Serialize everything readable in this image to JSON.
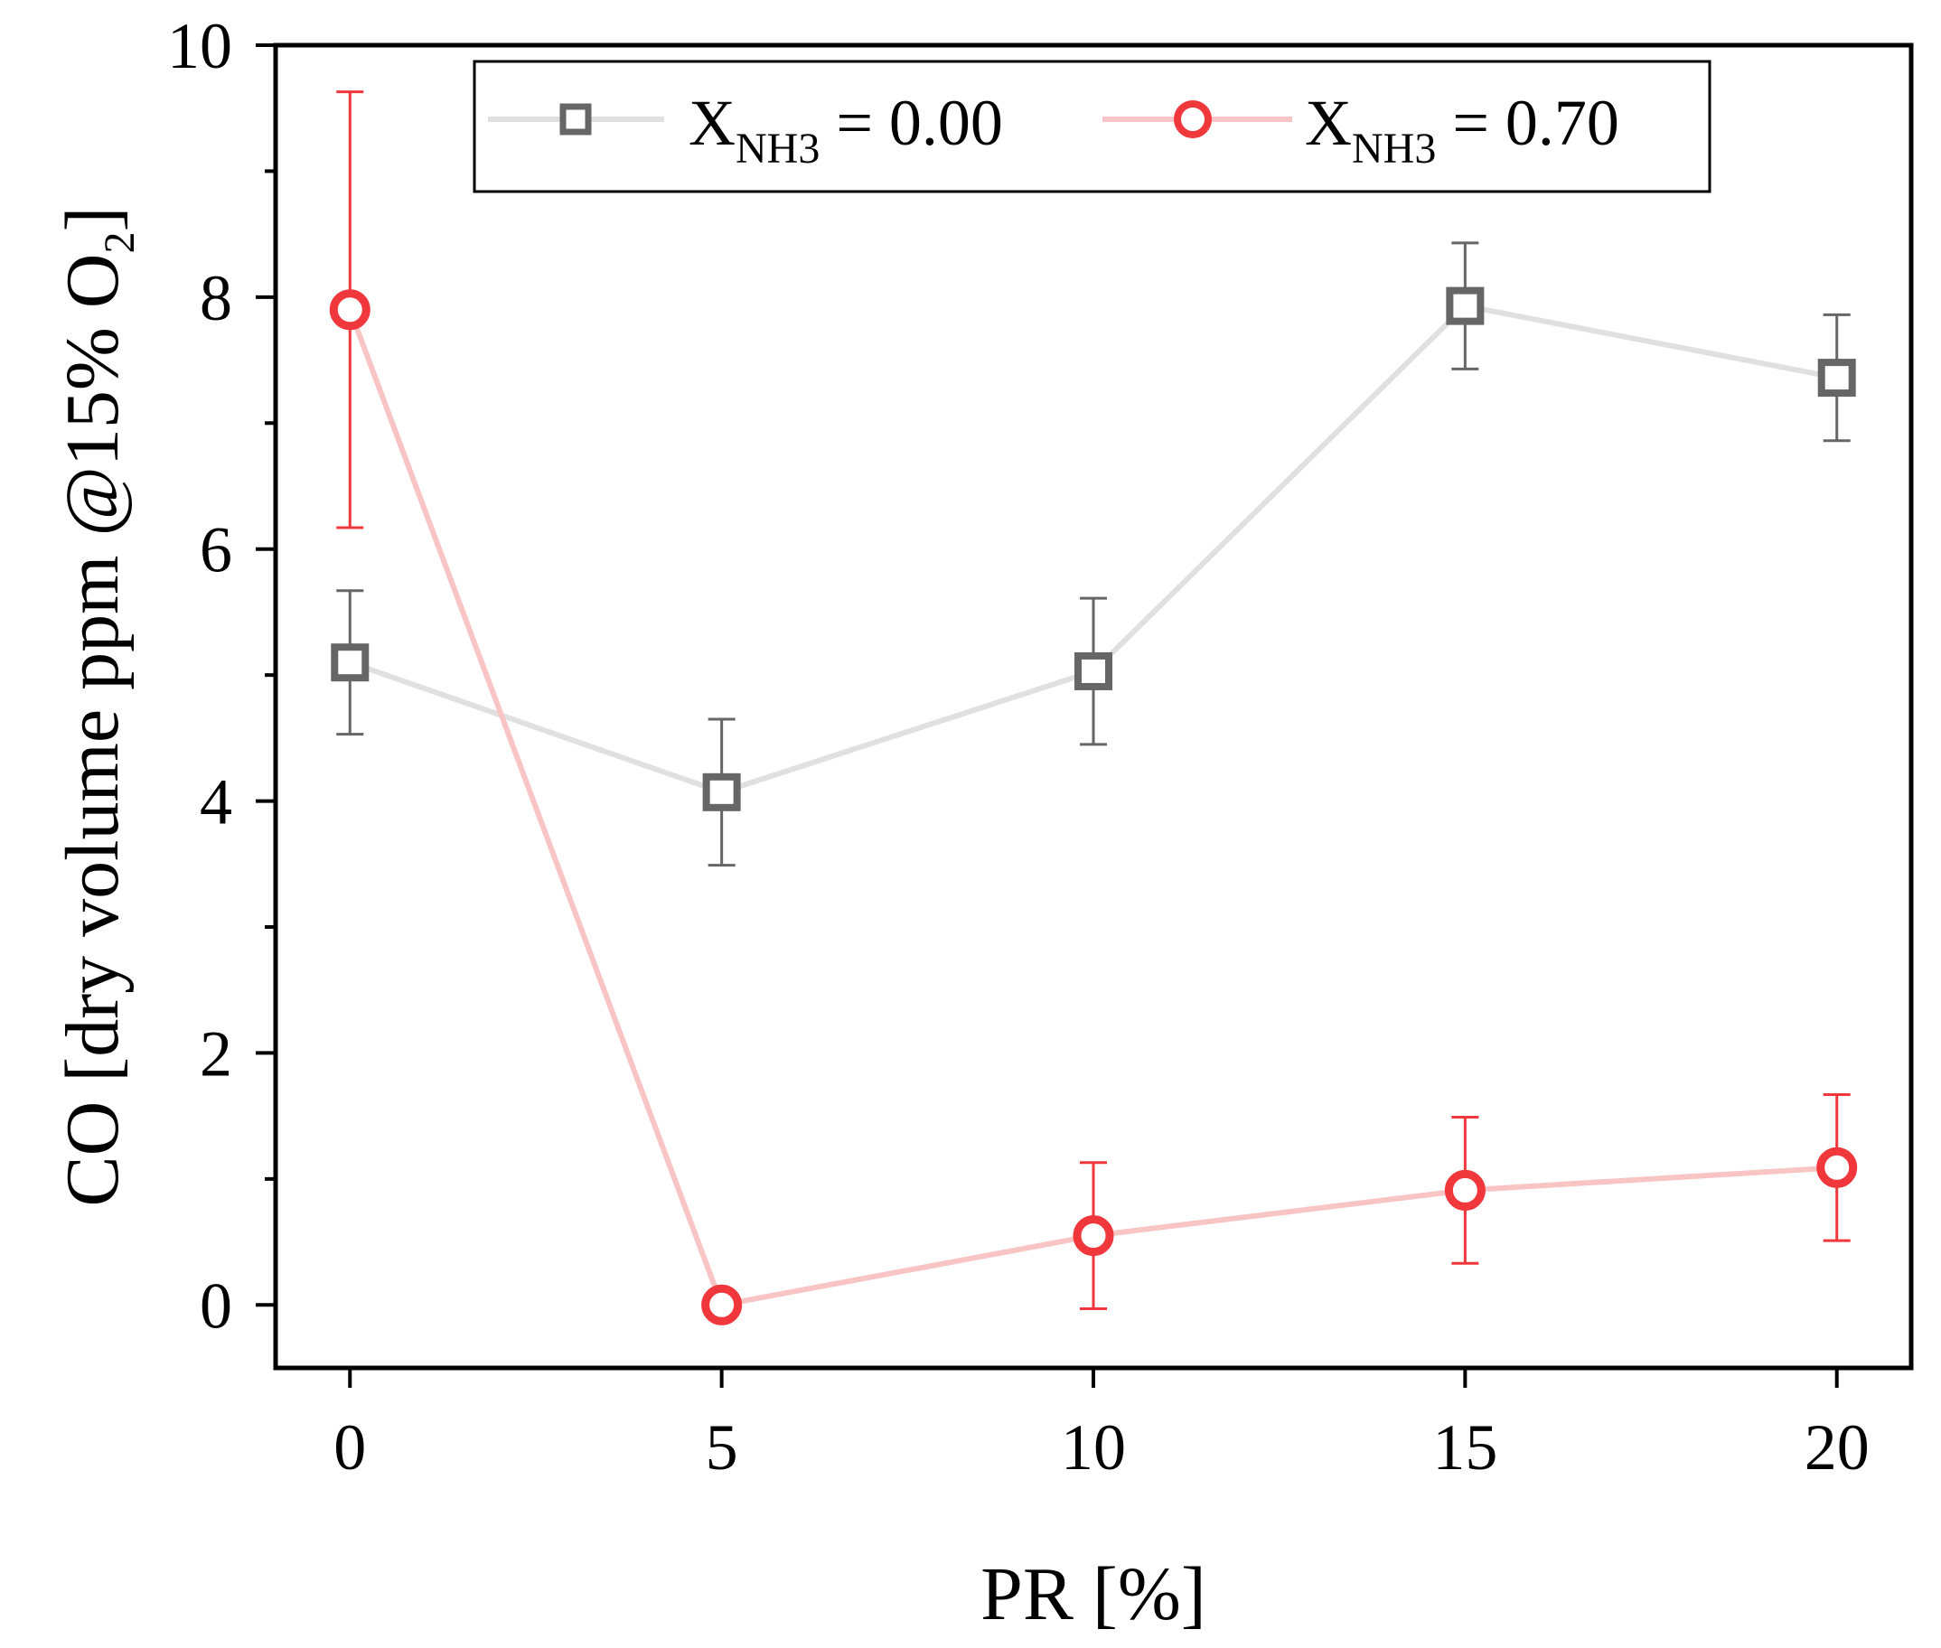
{
  "chart_data": {
    "type": "line",
    "title": "",
    "xlabel": "PR [%]",
    "ylabel": {
      "prefix": "CO [dry volume ppm @15% O",
      "subscript": "2",
      "suffix": "]"
    },
    "x": [
      0,
      5,
      10,
      15,
      20
    ],
    "xlim": [
      -1,
      21
    ],
    "ylim": [
      -0.5,
      10
    ],
    "xticks": [
      "0",
      "5",
      "10",
      "15",
      "20"
    ],
    "yticks": [
      "0",
      "2",
      "4",
      "6",
      "8",
      "10"
    ],
    "grid": false,
    "legend_position": "top",
    "series": [
      {
        "name": "X_NH3 = 0.00",
        "legend": {
          "main": "X",
          "sub": "NH3",
          "rest": " = 0.00"
        },
        "marker": "square",
        "line_color": "#e0e0e0",
        "marker_color": "#666666",
        "values": [
          5.1,
          4.07,
          5.03,
          7.93,
          7.36
        ],
        "errors": [
          0.57,
          0.58,
          0.58,
          0.5,
          0.5
        ]
      },
      {
        "name": "X_NH3 = 0.70",
        "legend": {
          "main": "X",
          "sub": "NH3",
          "rest": " = 0.70"
        },
        "marker": "circle",
        "line_color": "#f9c4c4",
        "marker_color": "#f0373c",
        "values": [
          7.9,
          0.0,
          0.55,
          0.91,
          1.09
        ],
        "errors": [
          1.73,
          0.0,
          0.58,
          0.58,
          0.58
        ]
      }
    ]
  }
}
